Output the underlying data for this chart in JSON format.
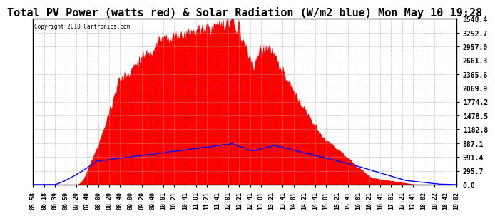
{
  "title": "Total PV Power (watts red) & Solar Radiation (W/m2 blue) Mon May 10 19:28",
  "copyright_text": "Copyright 2010 Cartronics.com",
  "yticks": [
    0.0,
    295.7,
    591.4,
    887.1,
    1182.8,
    1478.5,
    1774.2,
    2069.9,
    2365.6,
    2661.3,
    2957.0,
    3252.7,
    3548.4
  ],
  "xtick_labels": [
    "05:58",
    "06:18",
    "06:39",
    "06:59",
    "07:20",
    "07:40",
    "08:00",
    "08:20",
    "08:40",
    "09:00",
    "09:20",
    "09:40",
    "10:01",
    "10:21",
    "10:41",
    "11:01",
    "11:21",
    "11:41",
    "12:01",
    "12:21",
    "12:41",
    "13:01",
    "13:21",
    "13:41",
    "14:01",
    "14:21",
    "14:41",
    "15:01",
    "15:21",
    "15:41",
    "16:01",
    "16:21",
    "16:41",
    "17:01",
    "17:21",
    "17:41",
    "18:02",
    "18:22",
    "18:42",
    "19:02"
  ],
  "background_color": "#ffffff",
  "grid_color": "#aaaaaa",
  "red_color": "#ff0000",
  "blue_color": "#0000ff",
  "title_fontsize": 11,
  "ymax": 3548.4,
  "ymin": 0.0
}
